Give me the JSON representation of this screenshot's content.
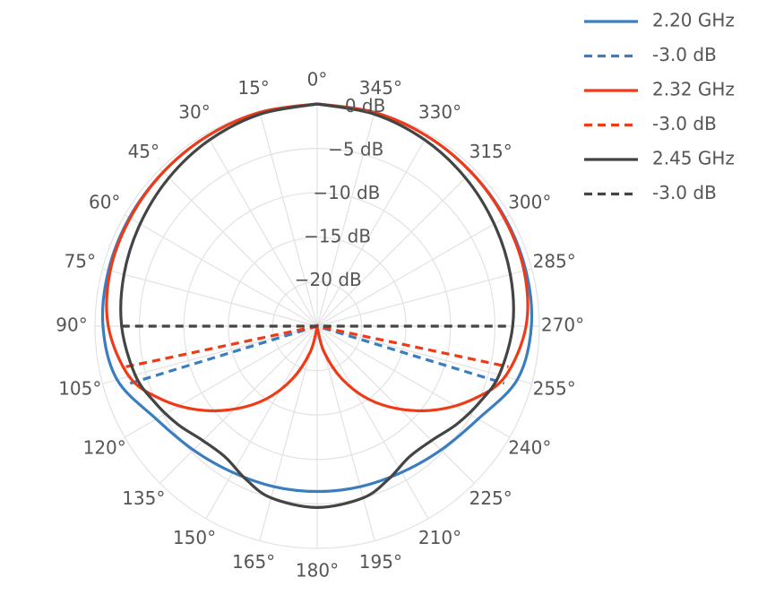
{
  "chart_data": {
    "type": "polar-line",
    "angular_axis": {
      "rotation_deg": 90,
      "direction": "clockwise",
      "tick_labels": [
        "0°",
        "15°",
        "30°",
        "45°",
        "60°",
        "75°",
        "90°",
        "105°",
        "120°",
        "135°",
        "150°",
        "165°",
        "180°",
        "195°",
        "210°",
        "225°",
        "240°",
        "255°",
        "270°",
        "285°",
        "300°",
        "315°",
        "330°",
        "345°"
      ]
    },
    "radial_axis": {
      "range": [
        -25,
        0
      ],
      "tick_values": [
        -20,
        -15,
        -10,
        -5,
        0
      ],
      "tick_labels": [
        "−20 dB",
        "−15 dB",
        "−10 dB",
        "−5 dB",
        "0 dB"
      ]
    },
    "grid": true,
    "legend_position": "top-right",
    "series": [
      {
        "name": "2.20 GHz",
        "color": "#3a7ebf",
        "dash": "solid",
        "theta": [
          0,
          15,
          30,
          45,
          60,
          75,
          90,
          105,
          120,
          135,
          150,
          165,
          180,
          195,
          210,
          225,
          240,
          255,
          270,
          285,
          300,
          315,
          330,
          345,
          360
        ],
        "r_db": [
          0,
          -0.1,
          -0.3,
          -0.5,
          -0.6,
          -0.7,
          -0.9,
          -1.7,
          -4.1,
          -5.3,
          -6.0,
          -6.3,
          -6.4,
          -6.3,
          -6.0,
          -5.3,
          -4.1,
          -1.7,
          -0.9,
          -0.7,
          -0.6,
          -0.5,
          -0.3,
          -0.1,
          0
        ]
      },
      {
        "name": "-3.0 dB",
        "color": "#3a7ebf",
        "dash": "dashed",
        "theta": [
          107,
          0,
          253
        ],
        "r_db": [
          -3,
          -25,
          -3
        ]
      },
      {
        "name": "2.32 GHz",
        "color": "#f03a17",
        "dash": "solid",
        "theta": [
          0,
          15,
          30,
          45,
          60,
          75,
          90,
          105,
          115,
          125,
          135,
          145,
          155,
          165,
          175,
          180,
          185,
          195,
          205,
          215,
          225,
          235,
          245,
          255,
          270,
          285,
          300,
          315,
          330,
          345,
          360
        ],
        "r_db": [
          0,
          -0.1,
          -0.3,
          -0.5,
          -0.7,
          -0.9,
          -1.5,
          -3.1,
          -5.6,
          -8.6,
          -11.8,
          -15.0,
          -18.5,
          -22.0,
          -24.8,
          -25.0,
          -24.8,
          -22.0,
          -18.5,
          -15.0,
          -11.8,
          -8.6,
          -5.6,
          -3.1,
          -1.5,
          -0.9,
          -0.7,
          -0.5,
          -0.3,
          -0.1,
          0
        ]
      },
      {
        "name": "-3.0 dB",
        "color": "#f03a17",
        "dash": "dashed",
        "theta": [
          102,
          0,
          258
        ],
        "r_db": [
          -3,
          -25,
          -3
        ]
      },
      {
        "name": "2.45 GHz",
        "color": "#444444",
        "dash": "solid",
        "theta": [
          0,
          15,
          30,
          45,
          60,
          75,
          90,
          105,
          115,
          125,
          135,
          145,
          155,
          165,
          180,
          195,
          205,
          215,
          225,
          235,
          245,
          255,
          270,
          285,
          300,
          315,
          330,
          345,
          360
        ],
        "r_db": [
          0,
          -0.3,
          -0.8,
          -1.4,
          -2.0,
          -2.5,
          -3.0,
          -3.8,
          -4.8,
          -5.8,
          -6.8,
          -7.0,
          -6.0,
          -5.0,
          -4.6,
          -5.0,
          -6.0,
          -7.0,
          -6.8,
          -5.8,
          -4.8,
          -3.8,
          -3.0,
          -2.5,
          -2.0,
          -1.4,
          -0.8,
          -0.3,
          0
        ]
      },
      {
        "name": "-3.0 dB",
        "color": "#444444",
        "dash": "dashed",
        "theta": [
          90,
          0,
          270
        ],
        "r_db": [
          -3,
          -25,
          -3
        ]
      }
    ]
  }
}
